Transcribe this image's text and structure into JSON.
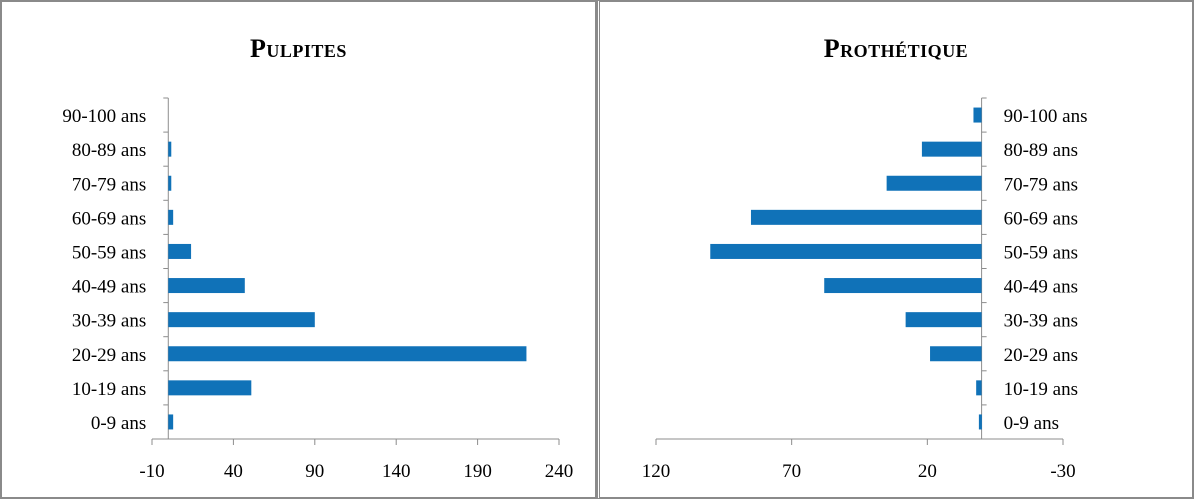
{
  "colors": {
    "bar": "#1072b8",
    "axis": "#8c8c8c",
    "border": "#8a8a8a"
  },
  "chart_data": [
    {
      "type": "bar",
      "orientation": "horizontal",
      "title": "Pulpites",
      "categories": [
        "0-9 ans",
        "10-19 ans",
        "20-29 ans",
        "30-39 ans",
        "40-49 ans",
        "50-59 ans",
        "60-69 ans",
        "70-79 ans",
        "80-89 ans",
        "90-100 ans"
      ],
      "values": [
        3,
        51,
        220,
        90,
        47,
        14,
        3,
        1,
        1,
        0
      ],
      "xlim": [
        -10,
        240
      ],
      "xticks": [
        "-10",
        "40",
        "90",
        "140",
        "190",
        "240"
      ],
      "xtick_values": [
        -10,
        40,
        90,
        140,
        190,
        240
      ],
      "x_reversed": false,
      "grid": false
    },
    {
      "type": "bar",
      "orientation": "horizontal",
      "title": "Prothétique",
      "categories": [
        "0-9 ans",
        "10-19 ans",
        "20-29 ans",
        "30-39 ans",
        "40-49 ans",
        "50-59 ans",
        "60-69 ans",
        "70-79 ans",
        "80-89 ans",
        "90-100 ans"
      ],
      "values": [
        1,
        2,
        19,
        28,
        58,
        100,
        85,
        35,
        22,
        3
      ],
      "xlim": [
        -30,
        120
      ],
      "xticks": [
        "120",
        "70",
        "20",
        "-30"
      ],
      "xtick_values": [
        120,
        70,
        20,
        -30
      ],
      "x_reversed": true,
      "grid": false
    }
  ]
}
